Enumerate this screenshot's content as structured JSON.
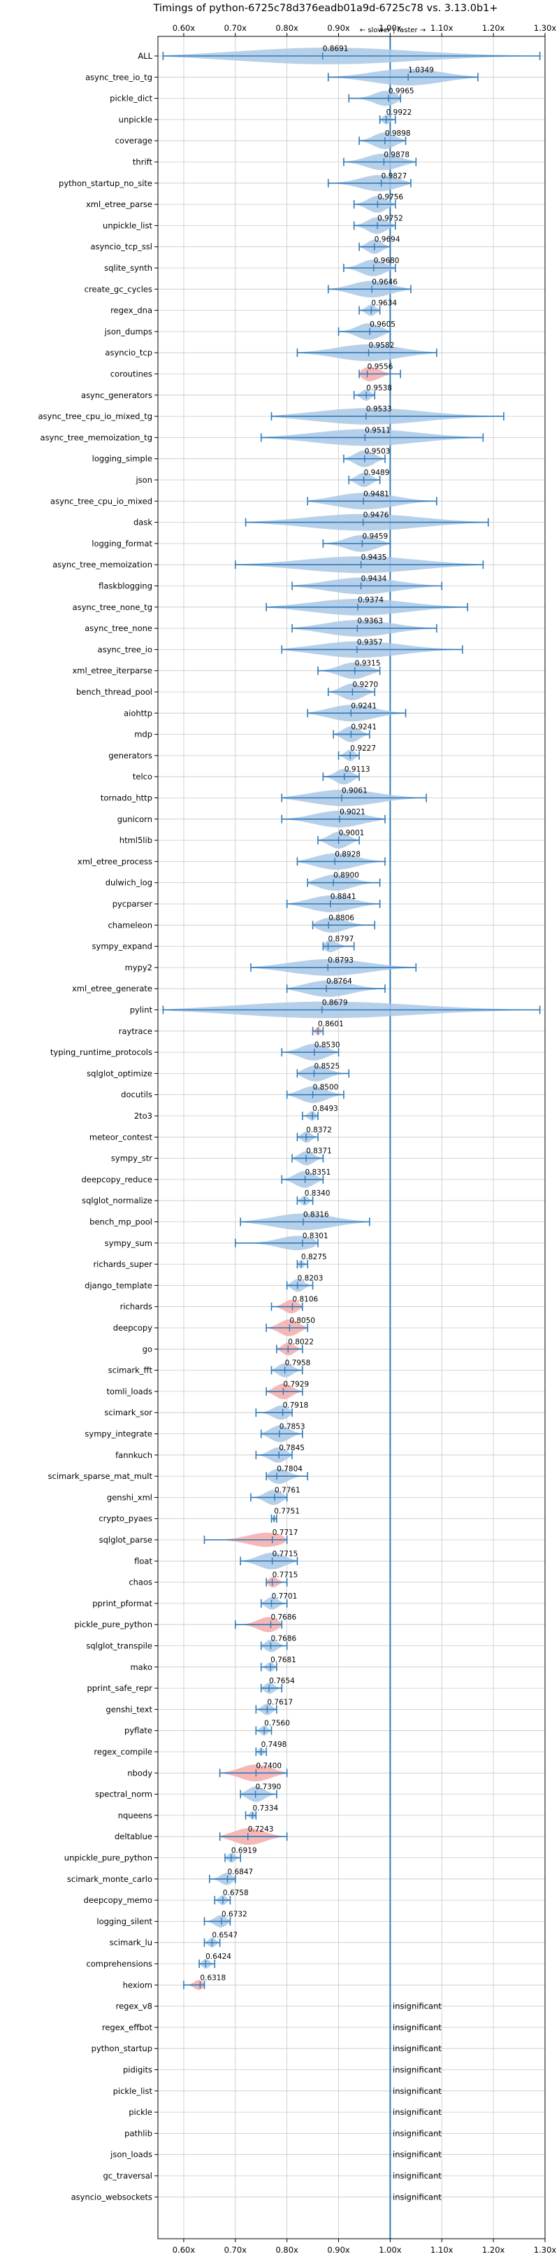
{
  "chart_data": {
    "type": "violin",
    "title": "Timings of python-6725c78d376eadb01a9d-6725c78 vs. 3.13.0b1+",
    "direction_label": "← slower | faster →",
    "xlim": [
      0.55,
      1.3
    ],
    "x_ticks": [
      0.6,
      0.7,
      0.8,
      0.9,
      1.0,
      1.1,
      1.2,
      1.3
    ],
    "x_tick_labels": [
      "0.60x",
      "0.70x",
      "0.80x",
      "0.90x",
      "1.00x",
      "1.10x",
      "1.20x",
      "1.30x"
    ],
    "reference_line": 1.0,
    "grid": true,
    "colors": {
      "normal": "#aac8e6",
      "regression": "#f4aaaa",
      "line": "#2e7ab8",
      "grid": "#c8c8c8",
      "reference": "#2e7ab8"
    },
    "insignificant_label": "insignificant",
    "benchmarks": [
      {
        "name": "ALL",
        "median": 0.8691,
        "label": "0.8691",
        "min": 0.56,
        "max": 1.29,
        "style": "normal"
      },
      {
        "name": "async_tree_io_tg",
        "median": 1.0349,
        "label": "1.0349",
        "min": 0.88,
        "max": 1.17,
        "style": "normal"
      },
      {
        "name": "pickle_dict",
        "median": 0.9965,
        "label": "0.9965",
        "min": 0.92,
        "max": 1.02,
        "style": "normal"
      },
      {
        "name": "unpickle",
        "median": 0.9922,
        "label": "0.9922",
        "min": 0.98,
        "max": 1.01,
        "style": "normal"
      },
      {
        "name": "coverage",
        "median": 0.9898,
        "label": "0.9898",
        "min": 0.94,
        "max": 1.03,
        "style": "normal"
      },
      {
        "name": "thrift",
        "median": 0.9878,
        "label": "0.9878",
        "min": 0.91,
        "max": 1.05,
        "style": "normal"
      },
      {
        "name": "python_startup_no_site",
        "median": 0.9827,
        "label": "0.9827",
        "min": 0.88,
        "max": 1.04,
        "style": "normal"
      },
      {
        "name": "xml_etree_parse",
        "median": 0.9756,
        "label": "0.9756",
        "min": 0.93,
        "max": 1.01,
        "style": "normal"
      },
      {
        "name": "unpickle_list",
        "median": 0.9752,
        "label": "0.9752",
        "min": 0.93,
        "max": 1.01,
        "style": "normal"
      },
      {
        "name": "asyncio_tcp_ssl",
        "median": 0.9694,
        "label": "0.9694",
        "min": 0.94,
        "max": 1.0,
        "style": "normal"
      },
      {
        "name": "sqlite_synth",
        "median": 0.968,
        "label": "0.9680",
        "min": 0.91,
        "max": 1.01,
        "style": "normal"
      },
      {
        "name": "create_gc_cycles",
        "median": 0.9646,
        "label": "0.9646",
        "min": 0.88,
        "max": 1.04,
        "style": "normal"
      },
      {
        "name": "regex_dna",
        "median": 0.9634,
        "label": "0.9634",
        "min": 0.94,
        "max": 0.98,
        "style": "normal"
      },
      {
        "name": "json_dumps",
        "median": 0.9605,
        "label": "0.9605",
        "min": 0.9,
        "max": 1.0,
        "style": "normal"
      },
      {
        "name": "asyncio_tcp",
        "median": 0.9582,
        "label": "0.9582",
        "min": 0.82,
        "max": 1.09,
        "style": "normal"
      },
      {
        "name": "coroutines",
        "median": 0.9556,
        "label": "0.9556",
        "min": 0.94,
        "max": 1.02,
        "style": "regression"
      },
      {
        "name": "async_generators",
        "median": 0.9538,
        "label": "0.9538",
        "min": 0.93,
        "max": 0.97,
        "style": "normal"
      },
      {
        "name": "async_tree_cpu_io_mixed_tg",
        "median": 0.9533,
        "label": "0.9533",
        "min": 0.77,
        "max": 1.22,
        "style": "normal"
      },
      {
        "name": "async_tree_memoization_tg",
        "median": 0.9511,
        "label": "0.9511",
        "min": 0.75,
        "max": 1.18,
        "style": "normal"
      },
      {
        "name": "logging_simple",
        "median": 0.9503,
        "label": "0.9503",
        "min": 0.91,
        "max": 0.99,
        "style": "normal"
      },
      {
        "name": "json",
        "median": 0.9489,
        "label": "0.9489",
        "min": 0.92,
        "max": 0.98,
        "style": "normal"
      },
      {
        "name": "async_tree_cpu_io_mixed",
        "median": 0.9481,
        "label": "0.9481",
        "min": 0.84,
        "max": 1.09,
        "style": "normal"
      },
      {
        "name": "dask",
        "median": 0.9476,
        "label": "0.9476",
        "min": 0.72,
        "max": 1.19,
        "style": "normal"
      },
      {
        "name": "logging_format",
        "median": 0.9459,
        "label": "0.9459",
        "min": 0.87,
        "max": 1.0,
        "style": "normal"
      },
      {
        "name": "async_tree_memoization",
        "median": 0.9435,
        "label": "0.9435",
        "min": 0.7,
        "max": 1.18,
        "style": "normal"
      },
      {
        "name": "flaskblogging",
        "median": 0.9434,
        "label": "0.9434",
        "min": 0.81,
        "max": 1.1,
        "style": "normal"
      },
      {
        "name": "async_tree_none_tg",
        "median": 0.9374,
        "label": "0.9374",
        "min": 0.76,
        "max": 1.15,
        "style": "normal"
      },
      {
        "name": "async_tree_none",
        "median": 0.9363,
        "label": "0.9363",
        "min": 0.81,
        "max": 1.09,
        "style": "normal"
      },
      {
        "name": "async_tree_io",
        "median": 0.9357,
        "label": "0.9357",
        "min": 0.79,
        "max": 1.14,
        "style": "normal"
      },
      {
        "name": "xml_etree_iterparse",
        "median": 0.9315,
        "label": "0.9315",
        "min": 0.86,
        "max": 0.98,
        "style": "normal"
      },
      {
        "name": "bench_thread_pool",
        "median": 0.927,
        "label": "0.9270",
        "min": 0.88,
        "max": 0.97,
        "style": "normal"
      },
      {
        "name": "aiohttp",
        "median": 0.9241,
        "label": "0.9241",
        "min": 0.84,
        "max": 1.03,
        "style": "normal"
      },
      {
        "name": "mdp",
        "median": 0.9241,
        "label": "0.9241",
        "min": 0.89,
        "max": 0.96,
        "style": "normal"
      },
      {
        "name": "generators",
        "median": 0.9227,
        "label": "0.9227",
        "min": 0.9,
        "max": 0.94,
        "style": "normal"
      },
      {
        "name": "telco",
        "median": 0.9113,
        "label": "0.9113",
        "min": 0.87,
        "max": 0.94,
        "style": "normal"
      },
      {
        "name": "tornado_http",
        "median": 0.9061,
        "label": "0.9061",
        "min": 0.79,
        "max": 1.07,
        "style": "normal"
      },
      {
        "name": "gunicorn",
        "median": 0.9021,
        "label": "0.9021",
        "min": 0.79,
        "max": 0.99,
        "style": "normal"
      },
      {
        "name": "html5lib",
        "median": 0.9001,
        "label": "0.9001",
        "min": 0.86,
        "max": 0.94,
        "style": "normal"
      },
      {
        "name": "xml_etree_process",
        "median": 0.8928,
        "label": "0.8928",
        "min": 0.82,
        "max": 0.99,
        "style": "normal"
      },
      {
        "name": "dulwich_log",
        "median": 0.89,
        "label": "0.8900",
        "min": 0.84,
        "max": 0.98,
        "style": "normal"
      },
      {
        "name": "pycparser",
        "median": 0.8841,
        "label": "0.8841",
        "min": 0.8,
        "max": 0.98,
        "style": "normal"
      },
      {
        "name": "chameleon",
        "median": 0.8806,
        "label": "0.8806",
        "min": 0.85,
        "max": 0.97,
        "style": "normal"
      },
      {
        "name": "sympy_expand",
        "median": 0.8797,
        "label": "0.8797",
        "min": 0.87,
        "max": 0.93,
        "style": "normal"
      },
      {
        "name": "mypy2",
        "median": 0.8793,
        "label": "0.8793",
        "min": 0.73,
        "max": 1.05,
        "style": "normal"
      },
      {
        "name": "xml_etree_generate",
        "median": 0.8764,
        "label": "0.8764",
        "min": 0.8,
        "max": 0.99,
        "style": "normal"
      },
      {
        "name": "pylint",
        "median": 0.8679,
        "label": "0.8679",
        "min": 0.56,
        "max": 1.29,
        "style": "normal"
      },
      {
        "name": "raytrace",
        "median": 0.8601,
        "label": "0.8601",
        "min": 0.85,
        "max": 0.87,
        "style": "regression"
      },
      {
        "name": "typing_runtime_protocols",
        "median": 0.853,
        "label": "0.8530",
        "min": 0.79,
        "max": 0.9,
        "style": "normal"
      },
      {
        "name": "sqlglot_optimize",
        "median": 0.8525,
        "label": "0.8525",
        "min": 0.82,
        "max": 0.92,
        "style": "normal"
      },
      {
        "name": "docutils",
        "median": 0.85,
        "label": "0.8500",
        "min": 0.8,
        "max": 0.91,
        "style": "normal"
      },
      {
        "name": "2to3",
        "median": 0.8493,
        "label": "0.8493",
        "min": 0.83,
        "max": 0.86,
        "style": "normal"
      },
      {
        "name": "meteor_contest",
        "median": 0.8372,
        "label": "0.8372",
        "min": 0.82,
        "max": 0.86,
        "style": "normal"
      },
      {
        "name": "sympy_str",
        "median": 0.8371,
        "label": "0.8371",
        "min": 0.81,
        "max": 0.87,
        "style": "normal"
      },
      {
        "name": "deepcopy_reduce",
        "median": 0.8351,
        "label": "0.8351",
        "min": 0.79,
        "max": 0.87,
        "style": "normal"
      },
      {
        "name": "sqlglot_normalize",
        "median": 0.834,
        "label": "0.8340",
        "min": 0.82,
        "max": 0.85,
        "style": "normal"
      },
      {
        "name": "bench_mp_pool",
        "median": 0.8316,
        "label": "0.8316",
        "min": 0.71,
        "max": 0.96,
        "style": "normal"
      },
      {
        "name": "sympy_sum",
        "median": 0.8301,
        "label": "0.8301",
        "min": 0.7,
        "max": 0.86,
        "style": "normal"
      },
      {
        "name": "richards_super",
        "median": 0.8275,
        "label": "0.8275",
        "min": 0.82,
        "max": 0.84,
        "style": "normal"
      },
      {
        "name": "django_template",
        "median": 0.8203,
        "label": "0.8203",
        "min": 0.8,
        "max": 0.85,
        "style": "normal"
      },
      {
        "name": "richards",
        "median": 0.8106,
        "label": "0.8106",
        "min": 0.77,
        "max": 0.83,
        "style": "regression"
      },
      {
        "name": "deepcopy",
        "median": 0.805,
        "label": "0.8050",
        "min": 0.76,
        "max": 0.84,
        "style": "regression"
      },
      {
        "name": "go",
        "median": 0.8022,
        "label": "0.8022",
        "min": 0.78,
        "max": 0.83,
        "style": "regression"
      },
      {
        "name": "scimark_fft",
        "median": 0.7958,
        "label": "0.7958",
        "min": 0.77,
        "max": 0.83,
        "style": "normal"
      },
      {
        "name": "tomli_loads",
        "median": 0.7929,
        "label": "0.7929",
        "min": 0.76,
        "max": 0.83,
        "style": "regression"
      },
      {
        "name": "scimark_sor",
        "median": 0.7918,
        "label": "0.7918",
        "min": 0.74,
        "max": 0.81,
        "style": "normal"
      },
      {
        "name": "sympy_integrate",
        "median": 0.7853,
        "label": "0.7853",
        "min": 0.75,
        "max": 0.83,
        "style": "normal"
      },
      {
        "name": "fannkuch",
        "median": 0.7845,
        "label": "0.7845",
        "min": 0.74,
        "max": 0.81,
        "style": "normal"
      },
      {
        "name": "scimark_sparse_mat_mult",
        "median": 0.7804,
        "label": "0.7804",
        "min": 0.76,
        "max": 0.84,
        "style": "normal"
      },
      {
        "name": "genshi_xml",
        "median": 0.7761,
        "label": "0.7761",
        "min": 0.73,
        "max": 0.8,
        "style": "normal"
      },
      {
        "name": "crypto_pyaes",
        "median": 0.7751,
        "label": "0.7751",
        "min": 0.77,
        "max": 0.78,
        "style": "normal"
      },
      {
        "name": "sqlglot_parse",
        "median": 0.7717,
        "label": "0.7717",
        "min": 0.64,
        "max": 0.8,
        "style": "regression"
      },
      {
        "name": "float",
        "median": 0.7715,
        "label": "0.7715",
        "min": 0.71,
        "max": 0.82,
        "style": "normal"
      },
      {
        "name": "chaos",
        "median": 0.7715,
        "label": "0.7715",
        "min": 0.76,
        "max": 0.8,
        "style": "regression"
      },
      {
        "name": "pprint_pformat",
        "median": 0.7701,
        "label": "0.7701",
        "min": 0.75,
        "max": 0.8,
        "style": "normal"
      },
      {
        "name": "pickle_pure_python",
        "median": 0.7686,
        "label": "0.7686",
        "min": 0.7,
        "max": 0.79,
        "style": "regression"
      },
      {
        "name": "sqlglot_transpile",
        "median": 0.7686,
        "label": "0.7686",
        "min": 0.75,
        "max": 0.8,
        "style": "normal"
      },
      {
        "name": "mako",
        "median": 0.7681,
        "label": "0.7681",
        "min": 0.75,
        "max": 0.78,
        "style": "normal"
      },
      {
        "name": "pprint_safe_repr",
        "median": 0.7654,
        "label": "0.7654",
        "min": 0.75,
        "max": 0.79,
        "style": "normal"
      },
      {
        "name": "genshi_text",
        "median": 0.7617,
        "label": "0.7617",
        "min": 0.74,
        "max": 0.78,
        "style": "normal"
      },
      {
        "name": "pyflate",
        "median": 0.756,
        "label": "0.7560",
        "min": 0.74,
        "max": 0.77,
        "style": "normal"
      },
      {
        "name": "regex_compile",
        "median": 0.7498,
        "label": "0.7498",
        "min": 0.74,
        "max": 0.76,
        "style": "normal"
      },
      {
        "name": "nbody",
        "median": 0.74,
        "label": "0.7400",
        "min": 0.67,
        "max": 0.8,
        "style": "regression"
      },
      {
        "name": "spectral_norm",
        "median": 0.739,
        "label": "0.7390",
        "min": 0.71,
        "max": 0.78,
        "style": "normal"
      },
      {
        "name": "nqueens",
        "median": 0.7334,
        "label": "0.7334",
        "min": 0.72,
        "max": 0.74,
        "style": "normal"
      },
      {
        "name": "deltablue",
        "median": 0.7243,
        "label": "0.7243",
        "min": 0.67,
        "max": 0.8,
        "style": "regression"
      },
      {
        "name": "unpickle_pure_python",
        "median": 0.6919,
        "label": "0.6919",
        "min": 0.68,
        "max": 0.71,
        "style": "normal"
      },
      {
        "name": "scimark_monte_carlo",
        "median": 0.6847,
        "label": "0.6847",
        "min": 0.65,
        "max": 0.7,
        "style": "normal"
      },
      {
        "name": "deepcopy_memo",
        "median": 0.6758,
        "label": "0.6758",
        "min": 0.66,
        "max": 0.69,
        "style": "normal"
      },
      {
        "name": "logging_silent",
        "median": 0.6732,
        "label": "0.6732",
        "min": 0.64,
        "max": 0.69,
        "style": "normal"
      },
      {
        "name": "scimark_lu",
        "median": 0.6547,
        "label": "0.6547",
        "min": 0.64,
        "max": 0.67,
        "style": "normal"
      },
      {
        "name": "comprehensions",
        "median": 0.6424,
        "label": "0.6424",
        "min": 0.63,
        "max": 0.66,
        "style": "normal"
      },
      {
        "name": "hexiom",
        "median": 0.6318,
        "label": "0.6318",
        "min": 0.6,
        "max": 0.64,
        "style": "regression"
      },
      {
        "name": "regex_v8",
        "insignificant": true
      },
      {
        "name": "regex_effbot",
        "insignificant": true
      },
      {
        "name": "python_startup",
        "insignificant": true
      },
      {
        "name": "pidigits",
        "insignificant": true
      },
      {
        "name": "pickle_list",
        "insignificant": true
      },
      {
        "name": "pickle",
        "insignificant": true
      },
      {
        "name": "pathlib",
        "insignificant": true
      },
      {
        "name": "json_loads",
        "insignificant": true
      },
      {
        "name": "gc_traversal",
        "insignificant": true
      },
      {
        "name": "asyncio_websockets",
        "insignificant": true
      }
    ]
  }
}
